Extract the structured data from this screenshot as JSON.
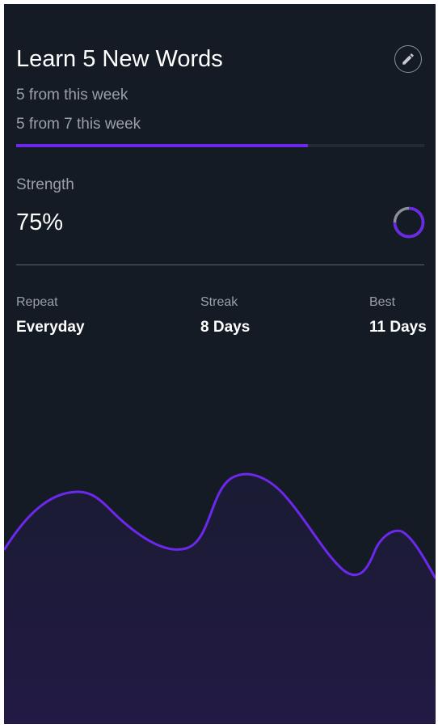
{
  "card": {
    "title": "Learn 5 New Words",
    "edit_icon": "pencil-icon",
    "subtitle_week": "5 from this week",
    "subtitle_progress": "5 from 7 this week",
    "progress_fraction": 0.714,
    "strength": {
      "label": "Strength",
      "value_text": "75%",
      "value_fraction": 0.75
    },
    "stats": [
      {
        "label": "Repeat",
        "value": "Everyday"
      },
      {
        "label": "Streak",
        "value": "8 Days"
      },
      {
        "label": "Best",
        "value": "11 Days"
      }
    ]
  },
  "colors": {
    "background": "#141b24",
    "accent": "#6d28ee",
    "text_primary": "#ffffff",
    "text_secondary": "#9aa0a6",
    "ring_track": "#8a8f95",
    "wave_fill_top": "#1a1b33",
    "wave_fill_bottom": "#221a44"
  }
}
